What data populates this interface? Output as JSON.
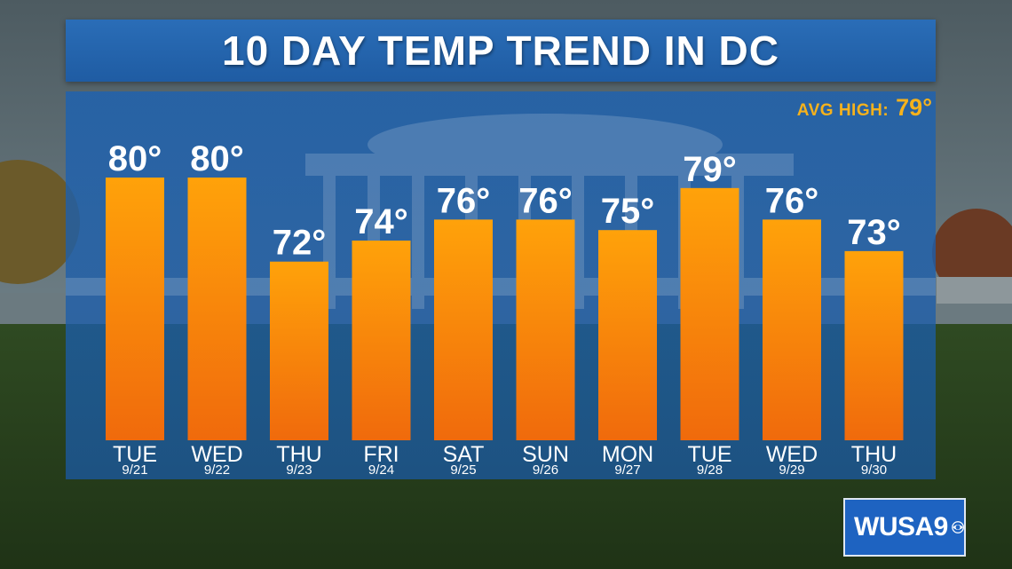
{
  "title": "10 DAY TEMP TREND IN DC",
  "avg_high": {
    "label": "AVG HIGH:",
    "value": "79°"
  },
  "logo": {
    "text": "WUSA9",
    "icon": "cbs-eye-icon"
  },
  "colors": {
    "title_bar": "#2162ad",
    "panel": "#1a5aa8",
    "bar_top": "#ffa20a",
    "bar_bottom": "#f06a0c",
    "avg": "#f6b21c"
  },
  "chart_data": {
    "type": "bar",
    "title": "10 DAY TEMP TREND IN DC",
    "xlabel": "",
    "ylabel": "",
    "ylim": [
      55,
      82
    ],
    "unit": "°",
    "categories": [
      "TUE",
      "WED",
      "THU",
      "FRI",
      "SAT",
      "SUN",
      "MON",
      "TUE",
      "WED",
      "THU"
    ],
    "dates": [
      "9/21",
      "9/22",
      "9/23",
      "9/24",
      "9/25",
      "9/26",
      "9/27",
      "9/28",
      "9/29",
      "9/30"
    ],
    "values": [
      80,
      80,
      72,
      74,
      76,
      76,
      75,
      79,
      76,
      73
    ],
    "labels": [
      "80°",
      "80°",
      "72°",
      "74°",
      "76°",
      "76°",
      "75°",
      "79°",
      "76°",
      "73°"
    ],
    "grid": false,
    "legend": "none"
  }
}
